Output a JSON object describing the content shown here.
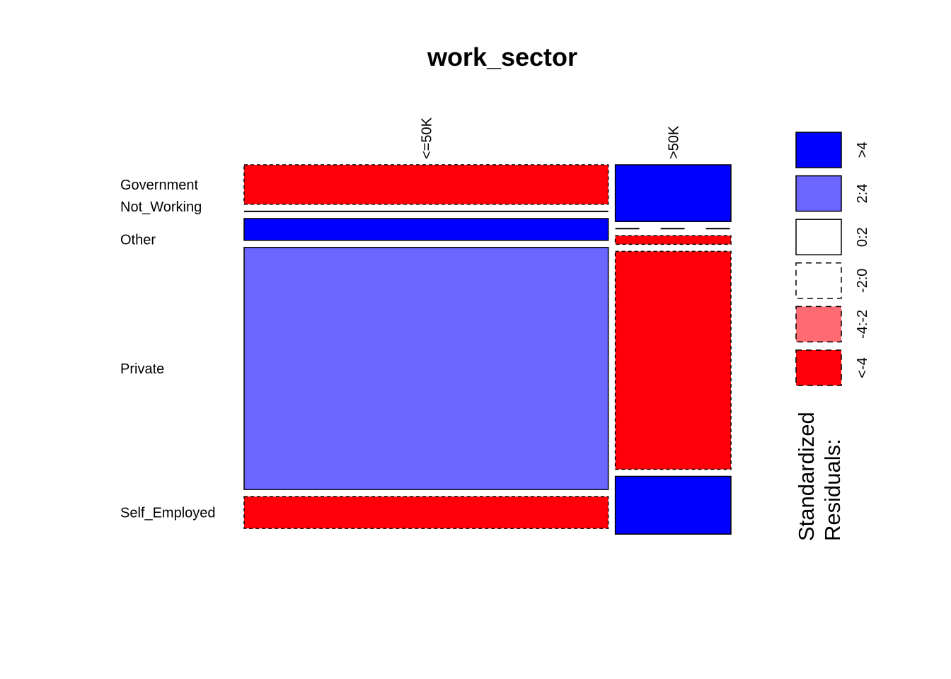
{
  "chart_data": {
    "type": "mosaic",
    "title": "work_sector",
    "columns": [
      "<=50K",
      ">50K"
    ],
    "rows": [
      "Government",
      "Not_Working",
      "Other",
      "Private",
      "Self_Employed"
    ],
    "column_proportions": [
      0.759,
      0.241
    ],
    "cells": [
      {
        "column": "<=50K",
        "row": "Government",
        "proportion": 0.114,
        "residual_class": "<-4"
      },
      {
        "column": "<=50K",
        "row": "Not_Working",
        "proportion": 0.0005,
        "residual_class": "0:2"
      },
      {
        "column": "<=50K",
        "row": "Other",
        "proportion": 0.063,
        "residual_class": ">4"
      },
      {
        "column": "<=50K",
        "row": "Private",
        "proportion": 0.7,
        "residual_class": "2:4"
      },
      {
        "column": "<=50K",
        "row": "Self_Employed",
        "proportion": 0.092,
        "residual_class": "<-4"
      },
      {
        "column": ">50K",
        "row": "Government",
        "proportion": 0.164,
        "residual_class": ">4"
      },
      {
        "column": ">50K",
        "row": "Not_Working",
        "proportion": 0.0,
        "residual_class": "-2:0"
      },
      {
        "column": ">50K",
        "row": "Other",
        "proportion": 0.025,
        "residual_class": "<-4"
      },
      {
        "column": ">50K",
        "row": "Private",
        "proportion": 0.63,
        "residual_class": "<-4"
      },
      {
        "column": ">50K",
        "row": "Self_Employed",
        "proportion": 0.167,
        "residual_class": ">4"
      }
    ],
    "legend": {
      "title_lines": [
        "Standardized",
        "Residuals:"
      ],
      "entries": [
        {
          "label": ">4",
          "color": "#0000ff",
          "dashed": false
        },
        {
          "label": "2:4",
          "color": "#6b66ff",
          "dashed": false
        },
        {
          "label": "0:2",
          "color": "#ffffff",
          "dashed": false
        },
        {
          "label": "-2:0",
          "color": "#ffffff",
          "dashed": true
        },
        {
          "label": "-4:-2",
          "color": "#ff6b73",
          "dashed": true
        },
        {
          "label": "<-4",
          "color": "#ff0008",
          "dashed": true
        }
      ]
    }
  }
}
